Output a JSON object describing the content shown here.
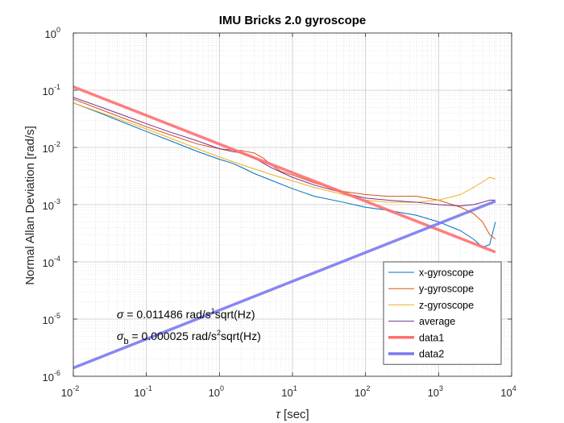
{
  "chart_data": {
    "type": "line",
    "title": "IMU Bricks 2.0 gyroscope",
    "xlabel_symbol": "τ",
    "xlabel_unit": "[sec]",
    "ylabel": "Normal Allan Deviation [rad/s]",
    "xscale": "log",
    "yscale": "log",
    "xlim": [
      0.01,
      10000
    ],
    "ylim": [
      1e-06,
      1
    ],
    "grid": true,
    "minor_grid": true,
    "legend_placement": "bottom-right",
    "x_ticks": [
      {
        "base": "10",
        "exp": "-2",
        "value": 0.01
      },
      {
        "base": "10",
        "exp": "-1",
        "value": 0.1
      },
      {
        "base": "10",
        "exp": "0",
        "value": 1
      },
      {
        "base": "10",
        "exp": "1",
        "value": 10
      },
      {
        "base": "10",
        "exp": "2",
        "value": 100
      },
      {
        "base": "10",
        "exp": "3",
        "value": 1000
      },
      {
        "base": "10",
        "exp": "4",
        "value": 10000
      }
    ],
    "y_ticks": [
      {
        "base": "10",
        "exp": "-6",
        "value": 1e-06
      },
      {
        "base": "10",
        "exp": "-5",
        "value": 1e-05
      },
      {
        "base": "10",
        "exp": "-4",
        "value": 0.0001
      },
      {
        "base": "10",
        "exp": "-3",
        "value": 0.001
      },
      {
        "base": "10",
        "exp": "-2",
        "value": 0.01
      },
      {
        "base": "10",
        "exp": "-1",
        "value": 0.1
      },
      {
        "base": "10",
        "exp": "0",
        "value": 1
      }
    ],
    "series": [
      {
        "name": "x-gyroscope",
        "color": "#0072BD",
        "width": 1,
        "x": [
          0.01,
          0.02,
          0.05,
          0.1,
          0.2,
          0.5,
          1,
          1.5,
          2,
          3,
          5,
          10,
          20,
          50,
          100,
          200,
          500,
          1000,
          2000,
          3000,
          4000,
          5000,
          6000
        ],
        "y": [
          0.06,
          0.043,
          0.027,
          0.019,
          0.0135,
          0.0085,
          0.0062,
          0.0053,
          0.0045,
          0.0035,
          0.0027,
          0.0019,
          0.0014,
          0.0011,
          0.0009,
          0.0008,
          0.00065,
          0.0005,
          0.00035,
          0.00025,
          0.00018,
          0.0002,
          0.0005
        ]
      },
      {
        "name": "y-gyroscope",
        "color": "#D95319",
        "width": 1,
        "x": [
          0.01,
          0.02,
          0.05,
          0.1,
          0.2,
          0.5,
          1,
          1.5,
          2,
          3,
          4,
          5,
          7,
          10,
          20,
          50,
          100,
          200,
          500,
          1000,
          2000,
          3000,
          4000,
          5000,
          6000
        ],
        "y": [
          0.07,
          0.05,
          0.032,
          0.023,
          0.017,
          0.0115,
          0.0095,
          0.009,
          0.0088,
          0.008,
          0.0065,
          0.005,
          0.0038,
          0.0033,
          0.0024,
          0.0017,
          0.0015,
          0.0014,
          0.0014,
          0.0012,
          0.0009,
          0.0007,
          0.0005,
          0.0003,
          0.00025
        ]
      },
      {
        "name": "z-gyroscope",
        "color": "#EDB120",
        "width": 1,
        "x": [
          0.01,
          0.02,
          0.05,
          0.1,
          0.2,
          0.5,
          1,
          2,
          5,
          10,
          20,
          50,
          100,
          200,
          500,
          1000,
          2000,
          3000,
          4000,
          5000,
          6000
        ],
        "y": [
          0.06,
          0.044,
          0.029,
          0.021,
          0.015,
          0.0095,
          0.0068,
          0.005,
          0.0034,
          0.0026,
          0.002,
          0.0015,
          0.0012,
          0.0011,
          0.0011,
          0.0012,
          0.0015,
          0.002,
          0.0025,
          0.003,
          0.0028
        ]
      },
      {
        "name": "average",
        "color": "#7E2F8E",
        "width": 1,
        "x": [
          0.01,
          0.02,
          0.05,
          0.1,
          0.2,
          0.5,
          1,
          1.5,
          2,
          3,
          5,
          10,
          20,
          50,
          100,
          200,
          500,
          1000,
          2000,
          3000,
          4000,
          5000,
          6000
        ],
        "y": [
          0.075,
          0.055,
          0.036,
          0.026,
          0.019,
          0.013,
          0.0095,
          0.0085,
          0.008,
          0.0065,
          0.0045,
          0.003,
          0.0022,
          0.0016,
          0.0013,
          0.0012,
          0.0011,
          0.001,
          0.00095,
          0.001,
          0.0011,
          0.0012,
          0.0012
        ]
      },
      {
        "name": "data1",
        "color": "#FF7070",
        "width": 3.5,
        "x": [
          0.01,
          6000
        ],
        "y": [
          0.11486,
          0.000148
        ]
      },
      {
        "name": "data2",
        "color": "#7A7AF0",
        "width": 3.5,
        "x": [
          0.01,
          6000
        ],
        "y": [
          1.4e-06,
          0.00115
        ]
      }
    ],
    "annotations": [
      {
        "symbol": "σ",
        "sub": "",
        "pre": " = 0.011486 rad/s",
        "sup": "1",
        "post": "sqrt(Hz)"
      },
      {
        "symbol": "σ",
        "sub": "b",
        "pre": " = 0.000025 rad/s",
        "sup": "2",
        "post": "sqrt(Hz)"
      }
    ]
  }
}
